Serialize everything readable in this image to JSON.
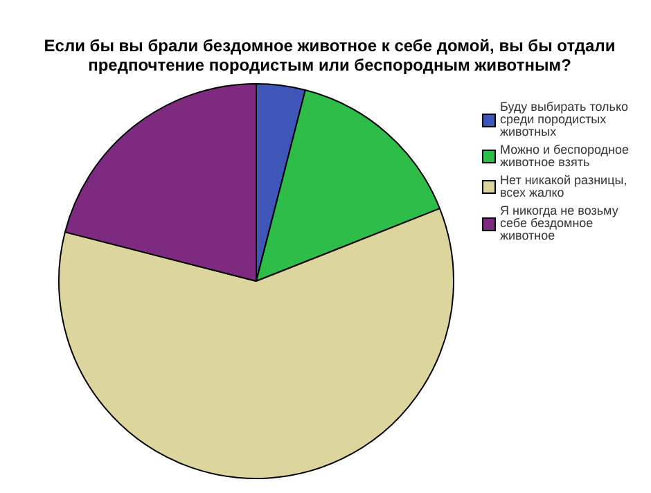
{
  "chart_data": {
    "type": "pie",
    "title": "Если бы вы брали бездомное животное к себе домой, вы бы отдали предпочтение породистым или беспородным животным?",
    "categories": [
      "Буду выбирать только среди породистых животных",
      "Можно и беспородное животное взять",
      "Нет никакой разницы, всех жалко",
      "Я никогда не возьму себе бездомное животное"
    ],
    "values": [
      4,
      15,
      60,
      21
    ],
    "colors": [
      "#3d56b8",
      "#2ebd48",
      "#ddd59e",
      "#7e2a80"
    ],
    "legend": "right"
  }
}
